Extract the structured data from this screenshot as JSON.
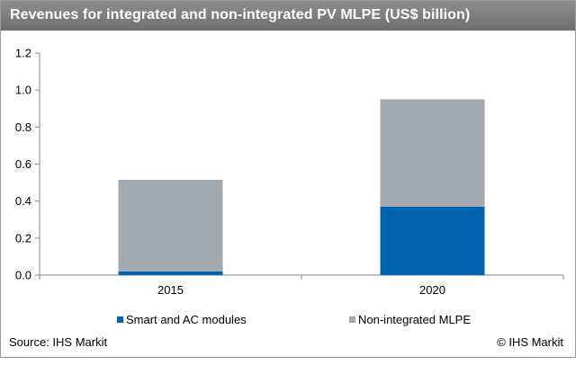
{
  "chart_data": {
    "type": "bar",
    "stacked": true,
    "title": "Revenues for integrated and non-integrated PV MLPE (US$ billion)",
    "xlabel": "",
    "ylabel": "",
    "categories": [
      "2015",
      "2020"
    ],
    "series": [
      {
        "name": "Smart and AC modules",
        "color": "#0063b0",
        "values": [
          0.02,
          0.37
        ]
      },
      {
        "name": "Non-integrated MLPE",
        "color": "#a1a9ae",
        "values": [
          0.495,
          0.58
        ]
      }
    ],
    "ylim": [
      0,
      1.2
    ],
    "yticks": [
      "0.0",
      "0.2",
      "0.4",
      "0.6",
      "0.8",
      "1.0",
      "1.2"
    ],
    "grid": false,
    "legend": "bottom"
  },
  "footer": {
    "source": "Source: IHS Markit",
    "copyright": "© IHS Markit"
  }
}
